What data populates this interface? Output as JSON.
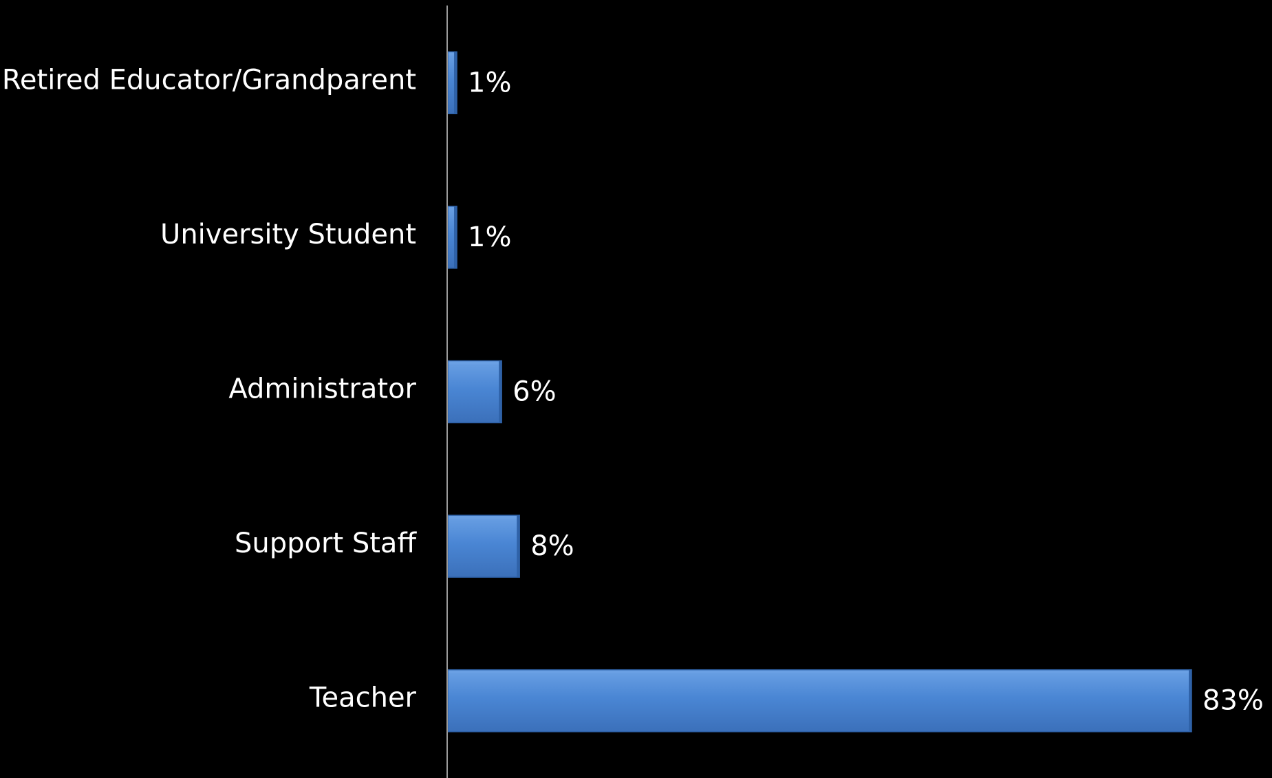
{
  "chart_data": {
    "type": "bar",
    "orientation": "horizontal",
    "categories": [
      "Retired Educator/Grandparent",
      "University Student",
      "Administrator",
      "Support Staff",
      "Teacher"
    ],
    "values": [
      1,
      1,
      6,
      8,
      83
    ],
    "value_labels": [
      "1%",
      "1%",
      "6%",
      "8%",
      "83%"
    ],
    "value_unit": "%",
    "xlim": [
      0,
      83
    ],
    "grid": false,
    "legend": "none",
    "colors": {
      "background": "#000000",
      "bar": "#4a86d4",
      "bar_light": "#6aa0e4",
      "bar_dark": "#2f62a8",
      "axis": "#9a9a9a",
      "text": "#ffffff"
    }
  }
}
